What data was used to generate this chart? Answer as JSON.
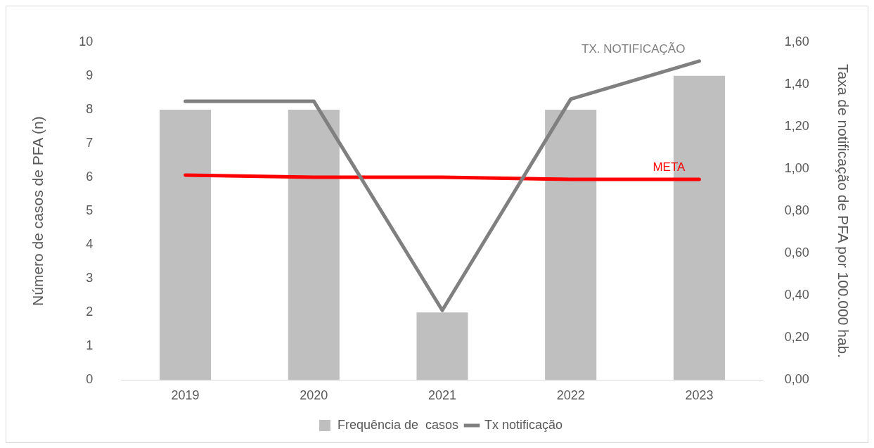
{
  "chart_data": {
    "type": "bar",
    "categories": [
      "2019",
      "2020",
      "2021",
      "2022",
      "2023"
    ],
    "ylabel": "Número de casos de PFA (n)",
    "y2label": "Taxa de notificação de PFA por 100.000 hab.",
    "series": [
      {
        "name": "Frequência de  casos",
        "color": "#bfbfbf",
        "values": [
          8,
          8,
          2,
          8,
          9
        ]
      },
      {
        "name": "Tx notificação",
        "type": "line",
        "axis": "y2",
        "color": "#808080",
        "values": [
          1.32,
          1.32,
          0.33,
          1.33,
          1.51
        ]
      },
      {
        "type": "line",
        "axis": "y2",
        "color": "#ff0000",
        "values": [
          0.97,
          0.96,
          0.96,
          0.95,
          0.95
        ]
      }
    ],
    "ylim": [
      0,
      10
    ],
    "yticks": [
      0,
      1,
      2,
      3,
      4,
      5,
      6,
      7,
      8,
      9,
      10
    ],
    "y2lim": [
      0,
      1.6
    ],
    "y2ticks": [
      {
        "value": 0,
        "label": "0,00"
      },
      {
        "value": 0.2,
        "label": "0,20"
      },
      {
        "value": 0.4,
        "label": "0,40"
      },
      {
        "value": 0.6,
        "label": "0,60"
      },
      {
        "value": 0.8,
        "label": "0,80"
      },
      {
        "value": 1,
        "label": "1,00"
      },
      {
        "value": 1.2,
        "label": "1,20"
      },
      {
        "value": 1.4,
        "label": "1,40"
      },
      {
        "value": 1.6,
        "label": "1,60"
      }
    ],
    "annotations": [
      "TX. NOTIFICAÇÃO",
      "META"
    ],
    "grid": false,
    "legend": "bottom",
    "marker": "none"
  }
}
